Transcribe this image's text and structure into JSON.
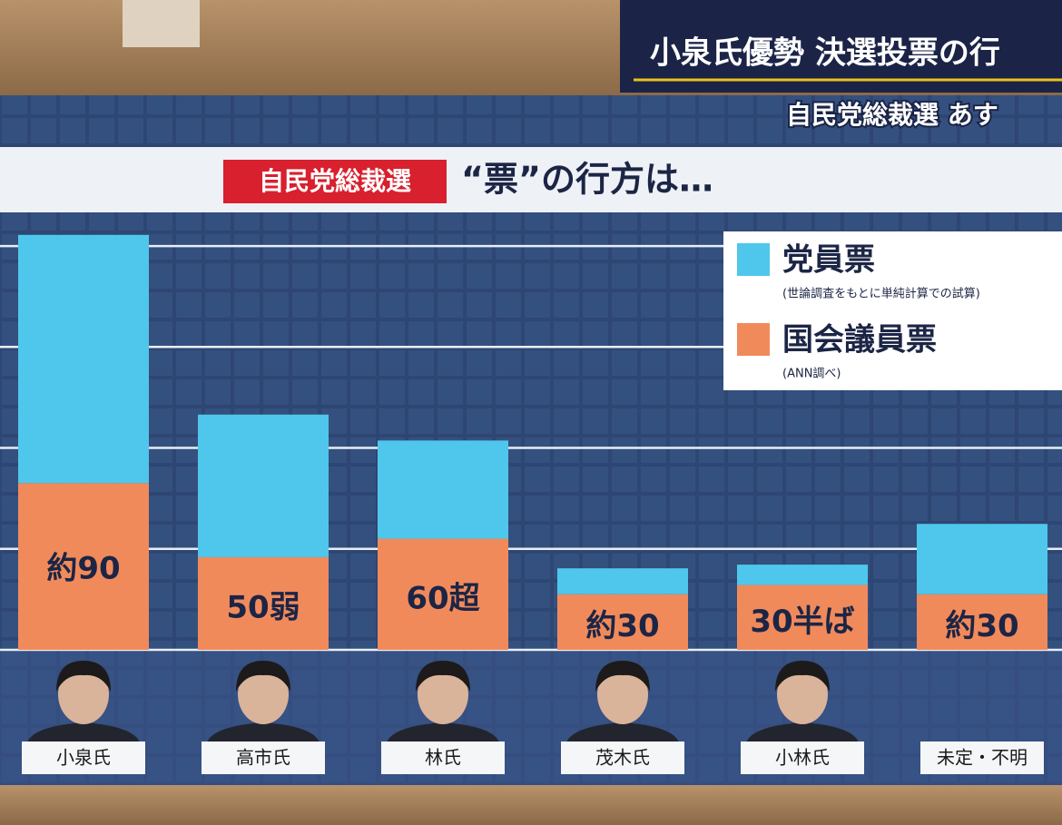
{
  "broadcast": {
    "headline": "小泉氏優勢 決選投票の行",
    "subheadline": "自民党総裁選 あす"
  },
  "chart_data": {
    "type": "stacked-bar",
    "badge": "自民党総裁選",
    "title": "“票”の行方は…",
    "categories": [
      "小泉氏",
      "高市氏",
      "林氏",
      "茂木氏",
      "小林氏",
      "未定・不明"
    ],
    "series": [
      {
        "name": "党員票",
        "note": "(世論調査をもとに単純計算での試算)",
        "color": "#4fc7ec",
        "values": [
          134,
          77,
          53,
          14,
          11,
          38
        ]
      },
      {
        "name": "国会議員票",
        "note": "(ANN調べ)",
        "color": "#f18a5b",
        "values": [
          90,
          50,
          60,
          30,
          35,
          30
        ],
        "value_labels": [
          "約90",
          "50弱",
          "60超",
          "約30",
          "30半ば",
          "約30"
        ]
      }
    ],
    "ylim": [
      0,
      220
    ],
    "yticks": [
      0,
      54.5,
      109,
      163.5,
      218
    ],
    "grid": true,
    "stack_order": [
      1,
      0
    ],
    "legend": "top-right"
  }
}
